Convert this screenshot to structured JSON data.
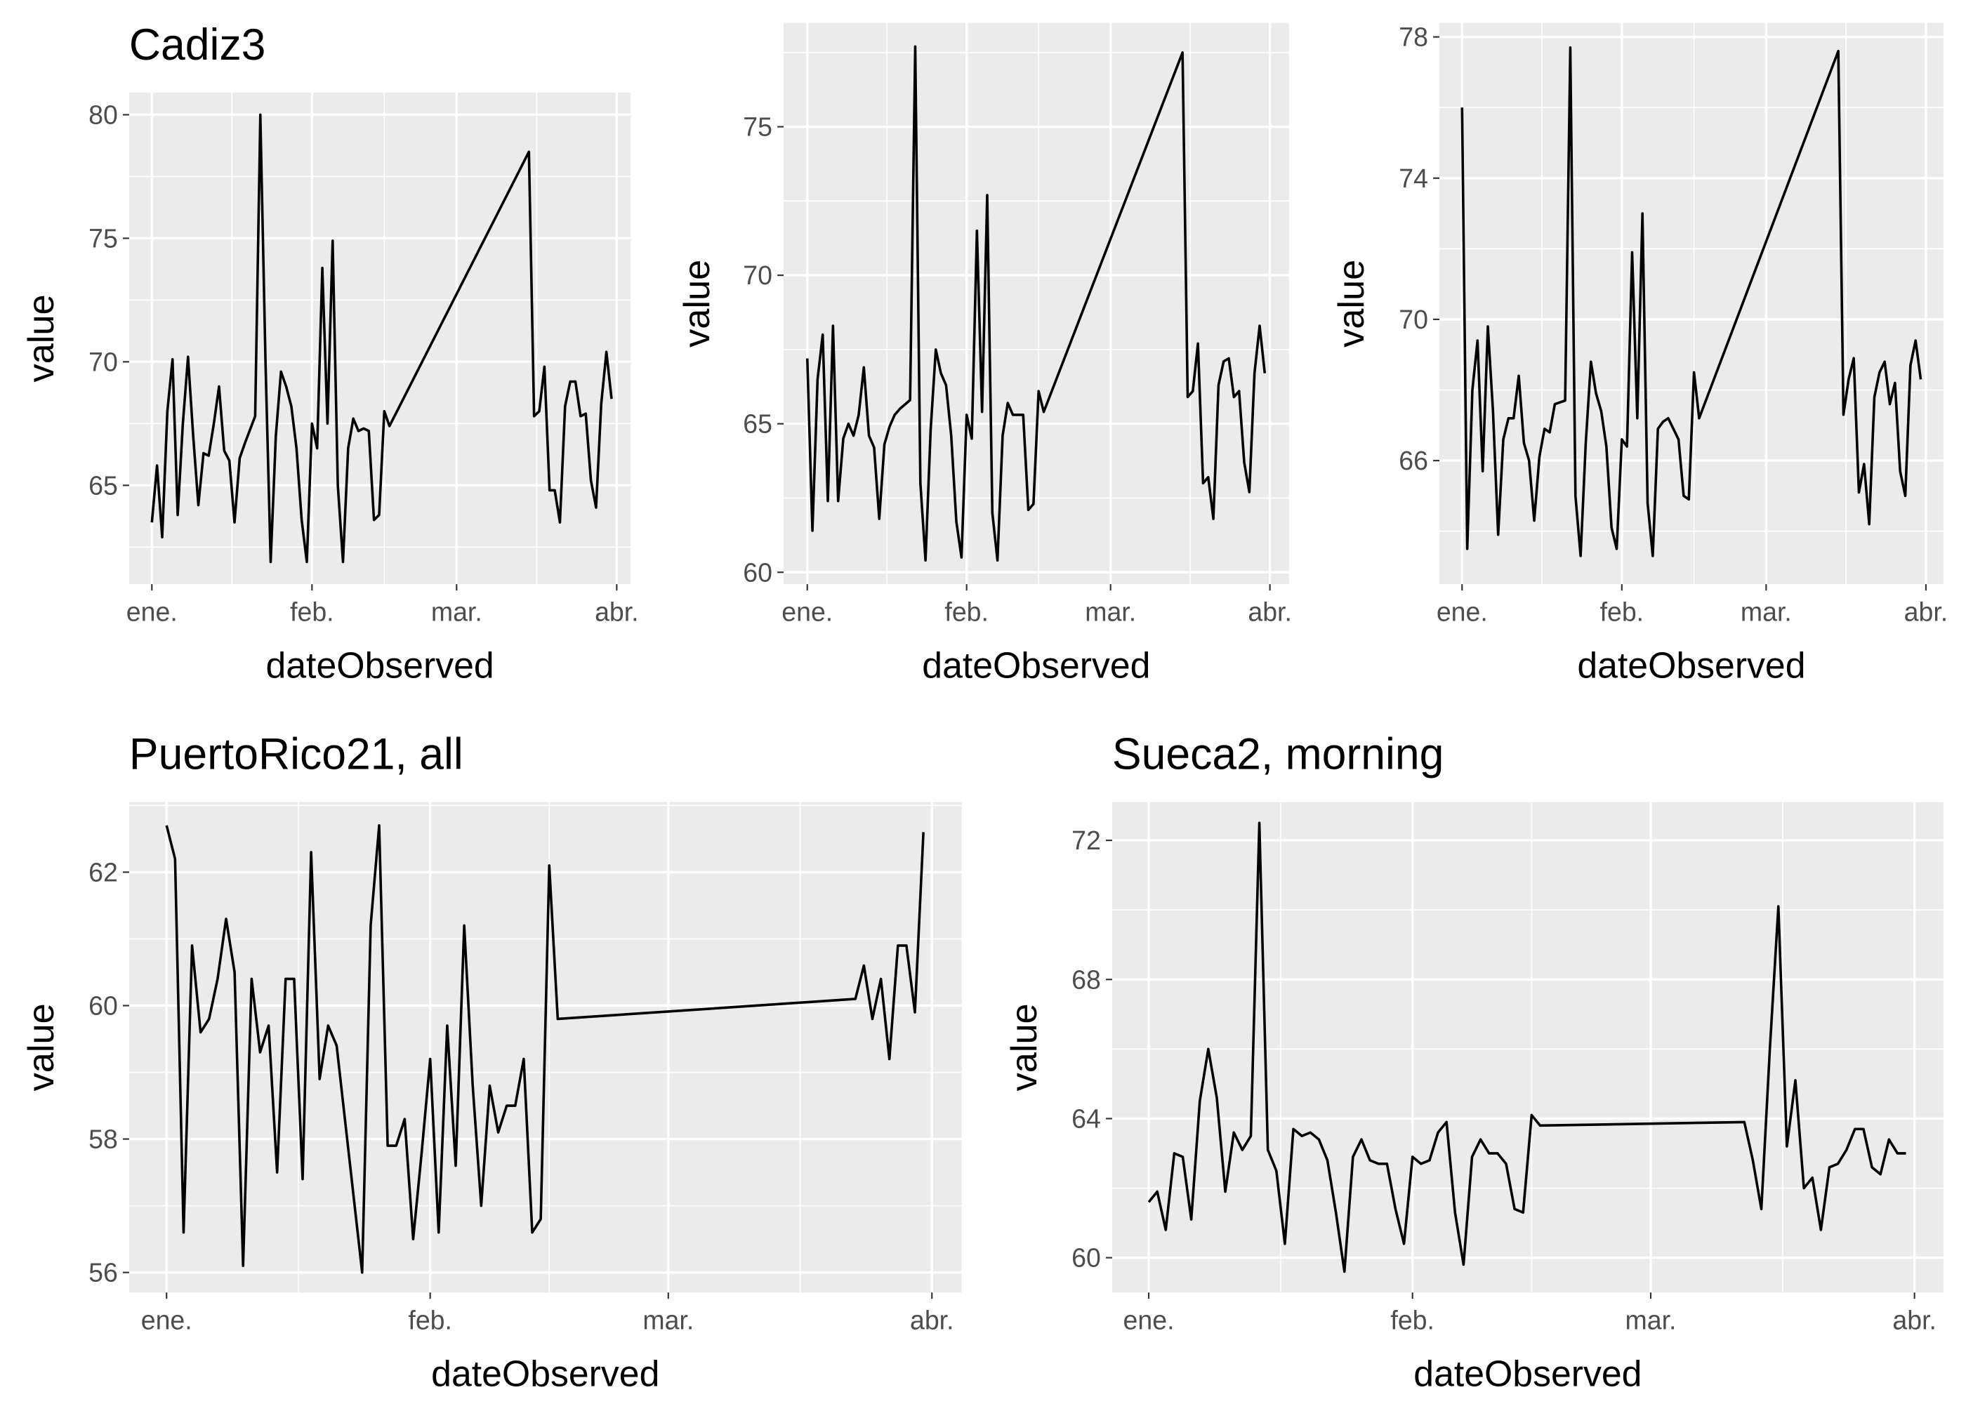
{
  "chart_data": [
    {
      "type": "line",
      "title": "Cadiz3",
      "x_label": "dateObserved",
      "y_label": "value",
      "color": "#000000",
      "grid": true,
      "xlim": [
        -4.4,
        92.7
      ],
      "xticks": [
        {
          "value": 0,
          "label": "ene."
        },
        {
          "value": 31,
          "label": "feb."
        },
        {
          "value": 59,
          "label": "mar."
        },
        {
          "value": 90,
          "label": "abr."
        }
      ],
      "ylim": [
        61.0,
        80.9
      ],
      "yticks": [
        65,
        70,
        75,
        80
      ],
      "x": [
        0,
        1,
        2,
        3,
        4,
        5,
        6,
        7,
        8,
        9,
        10,
        11,
        12,
        13,
        14,
        15,
        16,
        17,
        18,
        20,
        21,
        22,
        23,
        24,
        25,
        26,
        27,
        28,
        29,
        30,
        31,
        32,
        33,
        34,
        35,
        36,
        37,
        38,
        39,
        40,
        41,
        42,
        43,
        44,
        45,
        46,
        73,
        74,
        75,
        76,
        77,
        78,
        79,
        80,
        81,
        82,
        83,
        84,
        85,
        86,
        87,
        88,
        89
      ],
      "values": [
        63.5,
        65.8,
        62.9,
        68,
        70.1,
        63.8,
        67.5,
        70.2,
        67,
        64.2,
        66.3,
        66.2,
        67.5,
        69,
        66.4,
        66,
        63.5,
        66.1,
        66.7,
        67.8,
        80,
        70,
        61.9,
        67,
        69.6,
        69,
        68.2,
        66.5,
        63.6,
        61.9,
        67.5,
        66.5,
        73.8,
        67.5,
        74.9,
        65,
        61.9,
        66.5,
        67.7,
        67.2,
        67.3,
        67.2,
        63.6,
        63.8,
        68,
        67.4,
        78.5,
        67.8,
        68,
        69.8,
        64.8,
        64.8,
        63.5,
        68.2,
        69.2,
        69.2,
        67.8,
        67.9,
        65.2,
        64.1,
        68.3,
        70.4,
        68.5
      ]
    },
    {
      "type": "line",
      "x_label": "dateObserved",
      "y_label": "value",
      "color": "#000000",
      "grid": true,
      "xlim": [
        -4.6,
        93.7
      ],
      "xticks": [
        {
          "value": 0,
          "label": "ene."
        },
        {
          "value": 31,
          "label": "feb."
        },
        {
          "value": 59,
          "label": "mar."
        },
        {
          "value": 90,
          "label": "abr."
        }
      ],
      "ylim": [
        59.6,
        78.5
      ],
      "yticks": [
        60,
        65,
        70,
        75
      ],
      "x": [
        0,
        1,
        2,
        3,
        4,
        5,
        6,
        7,
        8,
        9,
        10,
        11,
        12,
        13,
        14,
        15,
        16,
        17,
        18,
        20,
        21,
        22,
        23,
        24,
        25,
        26,
        27,
        28,
        29,
        30,
        31,
        32,
        33,
        34,
        35,
        36,
        37,
        38,
        39,
        40,
        41,
        42,
        43,
        44,
        45,
        46,
        73,
        74,
        75,
        76,
        77,
        78,
        79,
        80,
        81,
        82,
        83,
        84,
        85,
        86,
        87,
        88,
        89
      ],
      "values": [
        67.2,
        61.4,
        66.5,
        68,
        62.4,
        68.3,
        62.4,
        64.5,
        65.0,
        64.6,
        65.3,
        66.9,
        64.6,
        64.2,
        61.8,
        64.3,
        64.9,
        65.3,
        65.5,
        65.8,
        77.7,
        63,
        60.4,
        64.8,
        67.5,
        66.7,
        66.3,
        64.6,
        61.7,
        60.5,
        65.3,
        64.5,
        71.5,
        65.4,
        72.7,
        62,
        60.4,
        64.6,
        65.7,
        65.3,
        65.3,
        65.3,
        62.1,
        62.3,
        66.1,
        65.4,
        77.5,
        65.9,
        66.1,
        67.7,
        63,
        63.2,
        61.8,
        66.3,
        67.1,
        67.2,
        65.9,
        66.1,
        63.7,
        62.7,
        66.7,
        68.3,
        66.7
      ]
    },
    {
      "type": "line",
      "x_label": "dateObserved",
      "y_label": "value",
      "color": "#000000",
      "grid": true,
      "xlim": [
        -4.4,
        93.4
      ],
      "xticks": [
        {
          "value": 0,
          "label": "ene."
        },
        {
          "value": 31,
          "label": "feb."
        },
        {
          "value": 59,
          "label": "mar."
        },
        {
          "value": 90,
          "label": "abr."
        }
      ],
      "ylim": [
        62.5,
        78.4
      ],
      "yticks": [
        66,
        70,
        74,
        78
      ],
      "x": [
        0,
        1,
        2,
        3,
        4,
        5,
        6,
        7,
        8,
        9,
        10,
        11,
        12,
        13,
        14,
        15,
        16,
        17,
        18,
        20,
        21,
        22,
        23,
        24,
        25,
        26,
        27,
        28,
        29,
        30,
        31,
        32,
        33,
        34,
        35,
        36,
        37,
        38,
        39,
        40,
        41,
        42,
        43,
        44,
        45,
        46,
        73,
        74,
        75,
        76,
        77,
        78,
        79,
        80,
        81,
        82,
        83,
        84,
        85,
        86,
        87,
        88,
        89
      ],
      "values": [
        76,
        63.5,
        68,
        69.4,
        65.7,
        69.8,
        67.4,
        63.9,
        66.6,
        67.2,
        67.2,
        68.4,
        66.5,
        66,
        64.3,
        66.1,
        66.9,
        66.8,
        67.6,
        67.7,
        77.7,
        65,
        63.3,
        66.5,
        68.8,
        67.9,
        67.4,
        66.4,
        64.1,
        63.5,
        66.6,
        66.4,
        71.9,
        67.2,
        73,
        64.8,
        63.3,
        66.9,
        67.1,
        67.2,
        66.9,
        66.6,
        65,
        64.9,
        68.5,
        67.2,
        77.6,
        67.3,
        68.3,
        68.9,
        65.1,
        65.9,
        64.2,
        67.8,
        68.5,
        68.8,
        67.6,
        68.2,
        65.7,
        65,
        68.7,
        69.4,
        68.3
      ]
    },
    {
      "type": "line",
      "title": "PuertoRico21, all",
      "x_label": "dateObserved",
      "y_label": "value",
      "color": "#000000",
      "grid": true,
      "xlim": [
        -4.4,
        93.5
      ],
      "xticks": [
        {
          "value": 0,
          "label": "ene."
        },
        {
          "value": 31,
          "label": "feb."
        },
        {
          "value": 59,
          "label": "mar."
        },
        {
          "value": 90,
          "label": "abr."
        }
      ],
      "ylim": [
        55.7,
        63.05
      ],
      "yticks": [
        56,
        58,
        60,
        62
      ],
      "x": [
        0,
        1,
        2,
        3,
        4,
        5,
        6,
        7,
        8,
        9,
        10,
        11,
        12,
        13,
        14,
        15,
        16,
        17,
        18,
        19,
        20,
        23,
        24,
        25,
        26,
        27,
        28,
        29,
        30,
        31,
        32,
        33,
        34,
        35,
        36,
        37,
        38,
        39,
        40,
        41,
        42,
        43,
        44,
        45,
        46,
        81,
        82,
        83,
        84,
        85,
        86,
        87,
        88,
        89
      ],
      "values": [
        62.7,
        62.2,
        56.6,
        60.9,
        59.6,
        59.8,
        60.4,
        61.3,
        60.5,
        56.1,
        60.4,
        59.3,
        59.7,
        57.5,
        60.4,
        60.4,
        57.4,
        62.3,
        58.9,
        59.7,
        59.4,
        56,
        61.2,
        62.7,
        57.9,
        57.9,
        58.3,
        56.5,
        57.8,
        59.2,
        56.6,
        59.7,
        57.6,
        61.2,
        58.8,
        57,
        58.8,
        58.1,
        58.5,
        58.5,
        59.2,
        56.6,
        56.8,
        62.1,
        59.8,
        60.1,
        60.6,
        59.8,
        60.4,
        59.2,
        60.9,
        60.9,
        59.9,
        62.6
      ]
    },
    {
      "type": "line",
      "title": "Sueca2, morning",
      "x_label": "dateObserved",
      "y_label": "value",
      "color": "#000000",
      "grid": true,
      "xlim": [
        -4.3,
        93.4
      ],
      "xticks": [
        {
          "value": 0,
          "label": "ene."
        },
        {
          "value": 31,
          "label": "feb."
        },
        {
          "value": 59,
          "label": "mar."
        },
        {
          "value": 90,
          "label": "abr."
        }
      ],
      "ylim": [
        59.0,
        73.1
      ],
      "yticks": [
        60,
        64,
        68,
        72
      ],
      "x": [
        0,
        1,
        2,
        3,
        4,
        5,
        6,
        7,
        8,
        9,
        10,
        11,
        12,
        13,
        14,
        15,
        16,
        17,
        18,
        19,
        20,
        21,
        22,
        23,
        24,
        25,
        26,
        27,
        28,
        29,
        30,
        31,
        32,
        33,
        34,
        35,
        36,
        37,
        38,
        39,
        40,
        41,
        42,
        43,
        44,
        45,
        46,
        70,
        71,
        72,
        73,
        74,
        75,
        76,
        77,
        78,
        79,
        80,
        81,
        82,
        83,
        84,
        85,
        86,
        87,
        88,
        89
      ],
      "values": [
        61.6,
        61.9,
        60.8,
        63,
        62.9,
        61.1,
        64.5,
        66,
        64.6,
        61.9,
        63.6,
        63.1,
        63.5,
        72.5,
        63.1,
        62.5,
        60.4,
        63.7,
        63.5,
        63.6,
        63.4,
        62.8,
        61.3,
        59.6,
        62.9,
        63.4,
        62.8,
        62.7,
        62.7,
        61.4,
        60.4,
        62.9,
        62.7,
        62.8,
        63.6,
        63.9,
        61.3,
        59.8,
        62.9,
        63.4,
        63,
        63,
        62.7,
        61.4,
        61.3,
        64.1,
        63.8,
        63.9,
        62.8,
        61.4,
        66,
        70.1,
        63.2,
        65.1,
        62,
        62.3,
        60.8,
        62.6,
        62.7,
        63.1,
        63.7,
        63.7,
        62.6,
        62.4,
        63.4,
        63,
        63
      ]
    }
  ]
}
